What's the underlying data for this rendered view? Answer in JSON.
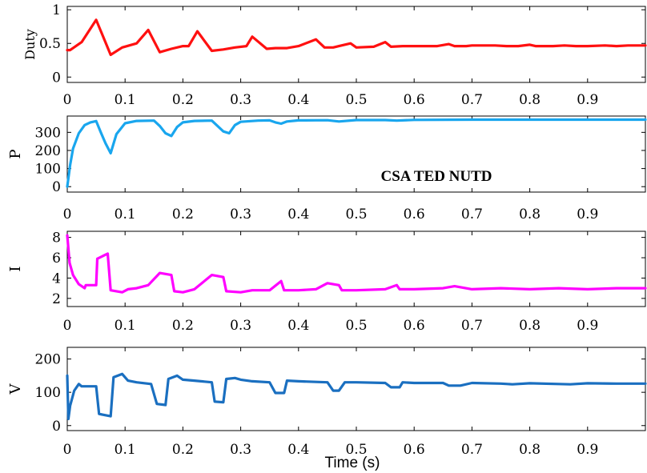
{
  "xlabel": "Time (s)",
  "chart_data": [
    {
      "type": "line",
      "ylabel": "Duty",
      "color": "#ff1010",
      "xlim": [
        0,
        1
      ],
      "ylim": [
        -0.08,
        1.05
      ],
      "xticks": [
        "0",
        "0.1",
        "0.2",
        "0.3",
        "0.4",
        "0.5",
        "0.6",
        "0.7",
        "0.8",
        "0.9"
      ],
      "yticks": [
        "0",
        "0.5",
        "1"
      ],
      "series": [
        {
          "x": [
            0,
            0.005,
            0.025,
            0.05,
            0.075,
            0.095,
            0.12,
            0.14,
            0.16,
            0.18,
            0.2,
            0.21,
            0.225,
            0.25,
            0.27,
            0.29,
            0.31,
            0.32,
            0.345,
            0.36,
            0.38,
            0.4,
            0.43,
            0.445,
            0.46,
            0.47,
            0.49,
            0.5,
            0.53,
            0.55,
            0.56,
            0.58,
            0.6,
            0.64,
            0.66,
            0.67,
            0.69,
            0.7,
            0.74,
            0.76,
            0.78,
            0.8,
            0.81,
            0.84,
            0.86,
            0.88,
            0.9,
            0.93,
            0.95,
            0.97,
            1.0
          ],
          "y": [
            0.4,
            0.4,
            0.52,
            0.85,
            0.33,
            0.44,
            0.5,
            0.7,
            0.37,
            0.42,
            0.46,
            0.46,
            0.68,
            0.39,
            0.41,
            0.44,
            0.46,
            0.6,
            0.42,
            0.43,
            0.43,
            0.46,
            0.56,
            0.44,
            0.44,
            0.46,
            0.5,
            0.44,
            0.45,
            0.52,
            0.45,
            0.46,
            0.46,
            0.46,
            0.49,
            0.46,
            0.46,
            0.47,
            0.47,
            0.46,
            0.46,
            0.48,
            0.46,
            0.46,
            0.47,
            0.46,
            0.46,
            0.47,
            0.46,
            0.47,
            0.47
          ]
        }
      ]
    },
    {
      "type": "line",
      "ylabel": "P",
      "color": "#19a6ee",
      "xlim": [
        0,
        1
      ],
      "ylim": [
        -30,
        390
      ],
      "xticks": [
        "0",
        "0.1",
        "0.2",
        "0.3",
        "0.4",
        "0.5",
        "0.6",
        "0.7",
        "0.8",
        "0.9"
      ],
      "yticks": [
        "0",
        "100",
        "200",
        "300"
      ],
      "annotation": "CSA TED NUTD",
      "series": [
        {
          "x": [
            0,
            0.005,
            0.01,
            0.02,
            0.03,
            0.04,
            0.05,
            0.058,
            0.066,
            0.075,
            0.085,
            0.1,
            0.12,
            0.15,
            0.16,
            0.17,
            0.18,
            0.19,
            0.2,
            0.22,
            0.25,
            0.26,
            0.27,
            0.28,
            0.29,
            0.3,
            0.33,
            0.35,
            0.36,
            0.37,
            0.38,
            0.4,
            0.45,
            0.47,
            0.5,
            0.55,
            0.57,
            0.6,
            0.7,
            0.8,
            0.9,
            1.0
          ],
          "y": [
            0,
            120,
            210,
            295,
            340,
            355,
            362,
            300,
            240,
            185,
            290,
            350,
            363,
            365,
            335,
            295,
            280,
            330,
            355,
            363,
            365,
            335,
            305,
            295,
            340,
            358,
            365,
            366,
            355,
            348,
            360,
            366,
            367,
            360,
            368,
            368,
            365,
            369,
            370,
            370,
            370,
            370
          ]
        }
      ]
    },
    {
      "type": "line",
      "ylabel": "I",
      "color": "#ff00ff",
      "xlim": [
        0,
        1
      ],
      "ylim": [
        1.2,
        8.6
      ],
      "xticks": [
        "0",
        "0.1",
        "0.2",
        "0.3",
        "0.4",
        "0.5",
        "0.6",
        "0.7",
        "0.8",
        "0.9"
      ],
      "yticks": [
        "2",
        "4",
        "6",
        "8"
      ],
      "series": [
        {
          "x": [
            0,
            0.004,
            0.01,
            0.02,
            0.03,
            0.032,
            0.05,
            0.052,
            0.07,
            0.075,
            0.095,
            0.105,
            0.12,
            0.14,
            0.16,
            0.18,
            0.185,
            0.2,
            0.22,
            0.25,
            0.27,
            0.275,
            0.3,
            0.32,
            0.35,
            0.37,
            0.375,
            0.4,
            0.43,
            0.45,
            0.47,
            0.475,
            0.5,
            0.55,
            0.57,
            0.575,
            0.6,
            0.65,
            0.67,
            0.7,
            0.75,
            0.8,
            0.85,
            0.9,
            0.95,
            1.0
          ],
          "y": [
            8.2,
            5.5,
            4.3,
            3.4,
            3.0,
            3.3,
            3.3,
            5.9,
            6.4,
            2.8,
            2.6,
            2.9,
            3.0,
            3.3,
            4.5,
            4.3,
            2.7,
            2.6,
            2.9,
            4.3,
            4.1,
            2.7,
            2.6,
            2.8,
            2.8,
            3.7,
            2.8,
            2.8,
            2.9,
            3.5,
            3.3,
            2.8,
            2.8,
            2.9,
            3.3,
            2.9,
            2.9,
            3.0,
            3.2,
            2.9,
            3.0,
            2.9,
            3.0,
            2.9,
            3.0,
            3.0
          ]
        }
      ]
    },
    {
      "type": "line",
      "ylabel": "V",
      "color": "#1a6fc0",
      "xlim": [
        0,
        1
      ],
      "ylim": [
        -15,
        235
      ],
      "xticks": [
        "0",
        "0.1",
        "0.2",
        "0.3",
        "0.4",
        "0.5",
        "0.6",
        "0.7",
        "0.8",
        "0.9"
      ],
      "yticks": [
        "0",
        "100",
        "200"
      ],
      "series": [
        {
          "x": [
            0,
            0.002,
            0.005,
            0.012,
            0.02,
            0.025,
            0.05,
            0.055,
            0.075,
            0.08,
            0.095,
            0.105,
            0.12,
            0.145,
            0.155,
            0.17,
            0.175,
            0.19,
            0.2,
            0.22,
            0.25,
            0.255,
            0.27,
            0.275,
            0.29,
            0.3,
            0.32,
            0.35,
            0.36,
            0.375,
            0.38,
            0.4,
            0.45,
            0.46,
            0.47,
            0.48,
            0.5,
            0.55,
            0.56,
            0.575,
            0.58,
            0.6,
            0.65,
            0.66,
            0.68,
            0.7,
            0.75,
            0.77,
            0.8,
            0.85,
            0.87,
            0.9,
            0.95,
            1.0
          ],
          "y": [
            150,
            20,
            60,
            105,
            125,
            118,
            118,
            35,
            28,
            145,
            155,
            135,
            130,
            125,
            65,
            62,
            140,
            150,
            138,
            135,
            130,
            72,
            70,
            140,
            143,
            138,
            133,
            130,
            98,
            98,
            135,
            133,
            130,
            105,
            105,
            130,
            130,
            128,
            115,
            115,
            130,
            128,
            128,
            120,
            120,
            128,
            126,
            124,
            127,
            125,
            124,
            127,
            126,
            126
          ]
        }
      ]
    }
  ]
}
